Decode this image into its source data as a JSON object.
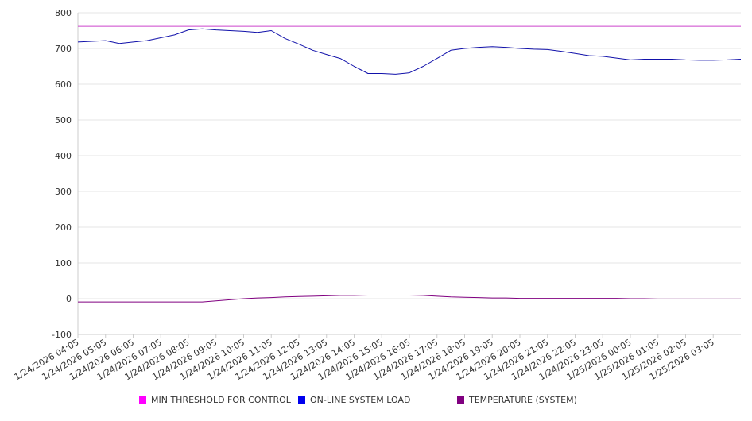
{
  "chart_data": {
    "type": "line",
    "ylim": [
      -100,
      800
    ],
    "yticks": [
      "800",
      "700",
      "600",
      "500",
      "400",
      "300",
      "200",
      "100",
      "0",
      "-100"
    ],
    "xticks": [
      "1/24/2026 04:05",
      "1/24/2026 05:05",
      "1/24/2026 06:05",
      "1/24/2026 07:05",
      "1/24/2026 08:05",
      "1/24/2026 09:05",
      "1/24/2026 10:05",
      "1/24/2026 11:05",
      "1/24/2026 12:05",
      "1/24/2026 13:05",
      "1/24/2026 14:05",
      "1/24/2026 15:05",
      "1/24/2026 16:05",
      "1/24/2026 17:05",
      "1/24/2026 18:05",
      "1/24/2026 19:05",
      "1/24/2026 20:05",
      "1/24/2026 21:05",
      "1/24/2026 22:05",
      "1/24/2026 23:05",
      "1/25/2026 00:05",
      "1/25/2026 01:05",
      "1/25/2026 02:05",
      "1/25/2026 03:05"
    ],
    "x": [
      "1/24/2026 04:05",
      "1/24/2026 04:35",
      "1/24/2026 05:05",
      "1/24/2026 05:35",
      "1/24/2026 06:05",
      "1/24/2026 06:35",
      "1/24/2026 07:05",
      "1/24/2026 07:35",
      "1/24/2026 08:05",
      "1/24/2026 08:35",
      "1/24/2026 09:05",
      "1/24/2026 09:35",
      "1/24/2026 10:05",
      "1/24/2026 10:35",
      "1/24/2026 11:05",
      "1/24/2026 11:35",
      "1/24/2026 12:05",
      "1/24/2026 12:35",
      "1/24/2026 13:05",
      "1/24/2026 13:35",
      "1/24/2026 14:05",
      "1/24/2026 14:35",
      "1/24/2026 15:05",
      "1/24/2026 15:35",
      "1/24/2026 16:05",
      "1/24/2026 16:35",
      "1/24/2026 17:05",
      "1/24/2026 17:35",
      "1/24/2026 18:05",
      "1/24/2026 18:35",
      "1/24/2026 19:05",
      "1/24/2026 19:35",
      "1/24/2026 20:05",
      "1/24/2026 20:35",
      "1/24/2026 21:05",
      "1/24/2026 21:35",
      "1/24/2026 22:05",
      "1/24/2026 22:35",
      "1/24/2026 23:05",
      "1/24/2026 23:35",
      "1/25/2026 00:05",
      "1/25/2026 00:35",
      "1/25/2026 01:05",
      "1/25/2026 01:35",
      "1/25/2026 02:05",
      "1/25/2026 02:35",
      "1/25/2026 03:05",
      "1/25/2026 03:35",
      "1/25/2026 04:05"
    ],
    "series": [
      {
        "name": "MIN THRESHOLD FOR CONTROL",
        "color": "#ff00ff",
        "line_color": "#cc44cc",
        "values": [
          762,
          762,
          762,
          762,
          762,
          762,
          762,
          762,
          762,
          762,
          762,
          762,
          762,
          762,
          762,
          762,
          762,
          762,
          762,
          762,
          762,
          762,
          762,
          762,
          762,
          762,
          762,
          762,
          762,
          762,
          762,
          762,
          762,
          762,
          762,
          762,
          762,
          762,
          762,
          762,
          762,
          762,
          762,
          762,
          762,
          762,
          762,
          762,
          762
        ]
      },
      {
        "name": "ON-LINE SYSTEM LOAD",
        "color": "#0000ee",
        "line_color": "#1111aa",
        "values": [
          718,
          720,
          722,
          714,
          718,
          722,
          730,
          738,
          752,
          755,
          752,
          750,
          748,
          745,
          750,
          728,
          712,
          695,
          683,
          672,
          650,
          630,
          630,
          628,
          632,
          650,
          672,
          695,
          700,
          703,
          705,
          703,
          700,
          698,
          697,
          692,
          686,
          680,
          678,
          673,
          668,
          670,
          670,
          670,
          668,
          667,
          667,
          668,
          670
        ]
      },
      {
        "name": "TEMPERATURE (SYSTEM)",
        "color": "#800080",
        "line_color": "#800080",
        "values": [
          -9,
          -9,
          -9,
          -9,
          -9,
          -9,
          -9,
          -9,
          -9,
          -9,
          -6,
          -3,
          0,
          2,
          3,
          5,
          6,
          7,
          8,
          9,
          9,
          10,
          10,
          10,
          10,
          9,
          7,
          5,
          4,
          3,
          2,
          2,
          1,
          1,
          1,
          1,
          1,
          1,
          1,
          1,
          0,
          0,
          -1,
          -1,
          -1,
          -1,
          -1,
          -1,
          -1
        ]
      }
    ],
    "grid": true,
    "legend_position": "bottom"
  }
}
